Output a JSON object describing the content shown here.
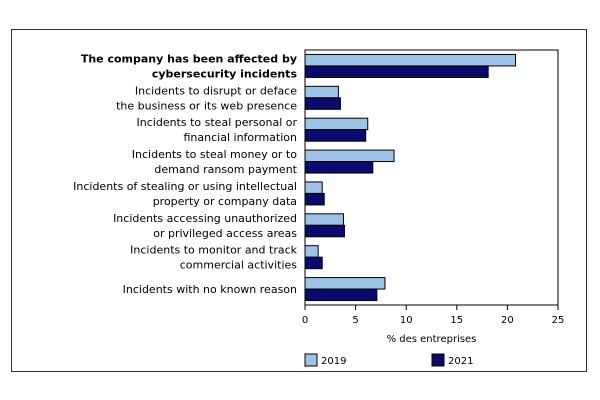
{
  "chart_data": {
    "type": "bar",
    "orientation": "horizontal",
    "categories": [
      [
        "The company has been affected by",
        "cybersecurity incidents"
      ],
      [
        "Incidents to disrupt or deface",
        "the business or its web presence"
      ],
      [
        "Incidents to steal personal or",
        "financial information"
      ],
      [
        "Incidents to steal money or to",
        "demand ransom payment"
      ],
      [
        "Incidents of stealing or using intellectual",
        "property or company data"
      ],
      [
        "Incidents accessing unauthorized",
        "or privileged access areas"
      ],
      [
        "Incidents to monitor and track",
        "commercial activities"
      ],
      [
        "Incidents with no known reason"
      ]
    ],
    "bold_category_index": 0,
    "series": [
      {
        "name": "2019",
        "color": "#9dc3e6",
        "values": [
          20.8,
          3.3,
          6.2,
          8.8,
          1.7,
          3.8,
          1.3,
          7.9
        ]
      },
      {
        "name": "2021",
        "color": "#0a0a6e",
        "values": [
          18.1,
          3.5,
          6.0,
          6.7,
          1.9,
          3.9,
          1.7,
          7.1
        ]
      }
    ],
    "xlabel": "% des entreprises",
    "xlim": [
      0,
      25
    ],
    "xticks": [
      "0",
      "5",
      "10",
      "15",
      "20",
      "25"
    ],
    "grid": false,
    "legend_position": "bottom"
  }
}
